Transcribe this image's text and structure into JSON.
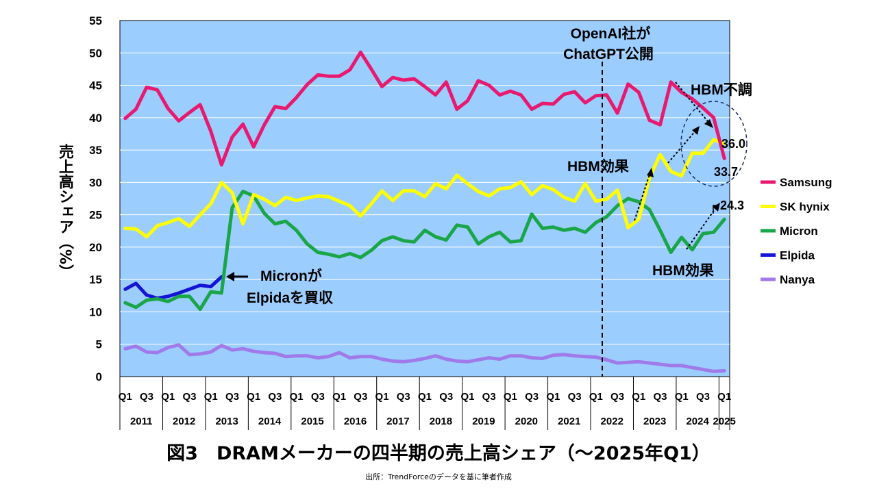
{
  "chart_data": {
    "type": "line",
    "title": "図3　DRAMメーカーの四半期の売上高シェア（～2025年Q1）",
    "source": "出所：TrendForceのデータを基に筆者作成",
    "ylabel": "売上高シェア（%）",
    "ylim": [
      0,
      55
    ],
    "yticks": [
      "0",
      "5",
      "10",
      "15",
      "20",
      "25",
      "30",
      "35",
      "40",
      "45",
      "50",
      "55"
    ],
    "quarter_ticks": [
      "Q1",
      "Q3",
      "Q1",
      "Q3",
      "Q1",
      "Q3",
      "Q1",
      "Q3",
      "Q1",
      "Q3",
      "Q1",
      "Q3",
      "Q1",
      "Q3",
      "Q1",
      "Q3",
      "Q1",
      "Q3",
      "Q1",
      "Q3",
      "Q1",
      "Q3",
      "Q1",
      "Q3",
      "Q1",
      "Q3",
      "Q1",
      "Q3",
      "Q1"
    ],
    "years": [
      "2011",
      "2012",
      "2013",
      "2014",
      "2015",
      "2016",
      "2017",
      "2018",
      "2019",
      "2020",
      "2021",
      "2022",
      "2023",
      "2024",
      "2025"
    ],
    "grid": true,
    "legend_position": "right",
    "series": [
      {
        "name": "Samsung",
        "color": "#e8196e",
        "start": 0,
        "values": [
          39.9,
          41.3,
          44.7,
          44.3,
          41.4,
          39.5,
          40.8,
          42.0,
          37.9,
          32.7,
          37.0,
          39.0,
          35.5,
          38.9,
          41.7,
          41.4,
          43.1,
          45.1,
          46.6,
          46.4,
          46.4,
          47.4,
          50.1,
          47.5,
          44.8,
          46.2,
          45.8,
          46.0,
          44.8,
          43.5,
          45.5,
          41.3,
          42.6,
          45.7,
          45.0,
          43.5,
          44.1,
          43.5,
          41.3,
          42.2,
          42.1,
          43.6,
          44.0,
          42.3,
          43.4,
          43.5,
          40.7,
          45.2,
          43.9,
          39.6,
          38.9,
          45.5,
          43.9,
          42.9,
          41.5,
          40.0,
          33.7
        ]
      },
      {
        "name": "SK hynix",
        "color": "#ffff00",
        "start": 0,
        "values": [
          22.9,
          22.8,
          21.6,
          23.3,
          23.8,
          24.4,
          23.2,
          25.0,
          26.7,
          30.0,
          28.4,
          23.6,
          28.1,
          27.4,
          26.4,
          27.7,
          27.2,
          27.6,
          27.9,
          27.8,
          27.1,
          26.4,
          24.8,
          26.7,
          28.7,
          27.2,
          28.7,
          28.7,
          27.8,
          29.8,
          29.0,
          31.1,
          29.8,
          28.6,
          27.9,
          29.0,
          29.2,
          30.1,
          28.1,
          29.5,
          28.9,
          27.7,
          27.1,
          29.8,
          27.1,
          27.4,
          28.8,
          23.0,
          24.3,
          30.7,
          34.3,
          31.7,
          31.0,
          34.5,
          34.5,
          36.6,
          36.0
        ]
      },
      {
        "name": "Micron",
        "color": "#1aa648",
        "start": 0,
        "values": [
          11.4,
          10.7,
          11.8,
          12.0,
          11.6,
          12.4,
          12.4,
          10.4,
          13.1,
          12.9,
          26.1,
          28.6,
          27.9,
          25.2,
          23.6,
          24.0,
          22.6,
          20.5,
          19.2,
          18.9,
          18.5,
          19.0,
          18.4,
          19.5,
          21.0,
          21.6,
          21.0,
          20.8,
          22.6,
          21.6,
          21.1,
          23.4,
          23.1,
          20.5,
          21.6,
          22.3,
          20.8,
          21.0,
          25.1,
          22.9,
          23.1,
          22.6,
          22.9,
          22.3,
          23.8,
          24.7,
          26.4,
          27.5,
          27.0,
          25.8,
          22.6,
          19.2,
          21.5,
          19.6,
          22.1,
          22.3,
          24.3
        ]
      },
      {
        "name": "Elpida",
        "color": "#1414d6",
        "start": 0,
        "values": [
          13.5,
          14.4,
          12.6,
          12.1,
          12.4,
          12.9,
          13.5,
          14.1,
          13.9,
          15.4
        ]
      },
      {
        "name": "Nanya",
        "color": "#a07aeb",
        "start": 0,
        "values": [
          4.3,
          4.7,
          3.8,
          3.7,
          4.5,
          4.9,
          3.4,
          3.5,
          3.8,
          4.8,
          4.1,
          4.3,
          3.9,
          3.7,
          3.6,
          3.1,
          3.2,
          3.2,
          2.9,
          3.1,
          3.7,
          2.9,
          3.1,
          3.1,
          2.7,
          2.4,
          2.3,
          2.5,
          2.8,
          3.2,
          2.7,
          2.4,
          2.3,
          2.6,
          2.9,
          2.7,
          3.2,
          3.2,
          2.9,
          2.8,
          3.3,
          3.4,
          3.2,
          3.1,
          3.0,
          2.6,
          2.1,
          2.2,
          2.3,
          2.1,
          1.9,
          1.7,
          1.7,
          1.4,
          1.1,
          0.8,
          0.9
        ]
      }
    ],
    "annotations": {
      "openai_line1": "OpenAI社が",
      "openai_line2": "ChatGPT公開",
      "hbm_weak": "HBM不調",
      "hbm_effect_top": "HBM効果",
      "hbm_effect_bottom": "HBM効果",
      "micron_line1": "Micronが",
      "micron_line2": "Elpidaを買収",
      "samsung_last": "33.7",
      "skhynix_last": "36.0",
      "micron_last": "24.3"
    }
  }
}
